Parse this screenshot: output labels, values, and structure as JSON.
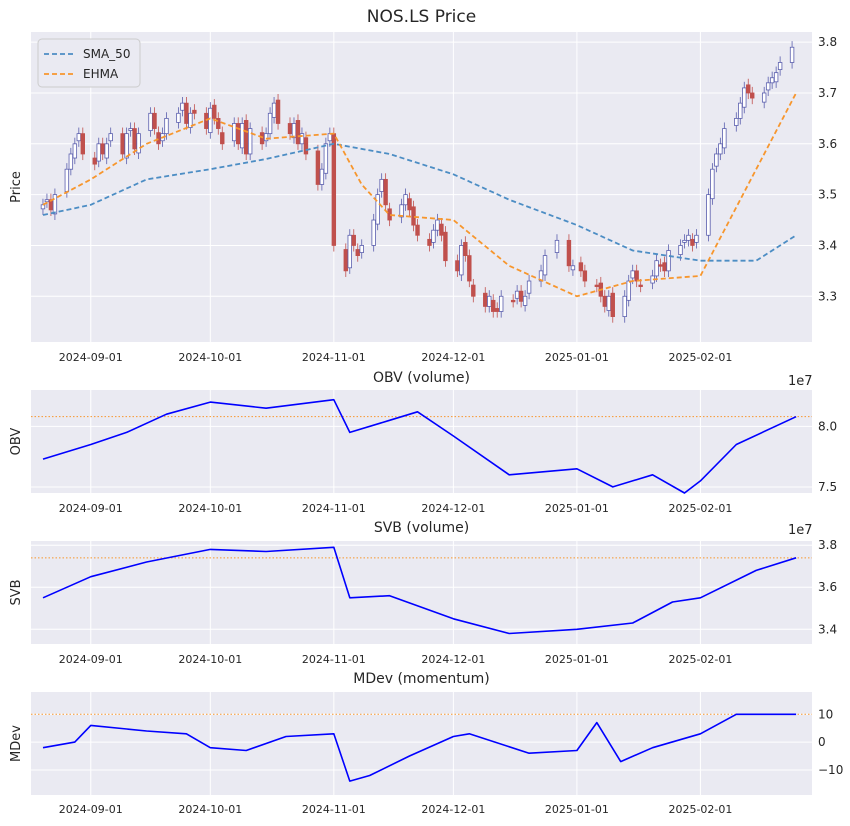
{
  "figure": {
    "background": "#ffffff",
    "panel_color": "#eaeaf2",
    "grid_color": "#ffffff"
  },
  "chart_data": [
    {
      "type": "candlestick",
      "title": "NOS.LS Price",
      "ylabel": "Price",
      "ylim": [
        3.21,
        3.82
      ],
      "yticks": [
        "3.3",
        "3.4",
        "3.5",
        "3.6",
        "3.7",
        "3.8"
      ],
      "x_ticks": [
        "2024-09-01",
        "2024-10-01",
        "2024-11-01",
        "2024-12-01",
        "2025-01-01",
        "2025-02-01"
      ],
      "x_range": [
        "2024-08-17",
        "2025-03-01"
      ],
      "up_color": "#5b5fae",
      "down_color": "#c0504d",
      "candle_dates": [
        "2024-08-20",
        "2024-08-21",
        "2024-08-22",
        "2024-08-23",
        "2024-08-26",
        "2024-08-27",
        "2024-08-28",
        "2024-08-29",
        "2024-08-30",
        "2024-09-02",
        "2024-09-03",
        "2024-09-04",
        "2024-09-05",
        "2024-09-06",
        "2024-09-09",
        "2024-09-10",
        "2024-09-11",
        "2024-09-12",
        "2024-09-13",
        "2024-09-16",
        "2024-09-17",
        "2024-09-18",
        "2024-09-19",
        "2024-09-20",
        "2024-09-23",
        "2024-09-24",
        "2024-09-25",
        "2024-09-26",
        "2024-09-27",
        "2024-09-30",
        "2024-10-01",
        "2024-10-02",
        "2024-10-03",
        "2024-10-04",
        "2024-10-07",
        "2024-10-08",
        "2024-10-09",
        "2024-10-10",
        "2024-10-11",
        "2024-10-14",
        "2024-10-15",
        "2024-10-16",
        "2024-10-17",
        "2024-10-18",
        "2024-10-21",
        "2024-10-22",
        "2024-10-23",
        "2024-10-24",
        "2024-10-25",
        "2024-10-28",
        "2024-10-29",
        "2024-10-30",
        "2024-10-31",
        "2024-11-01",
        "2024-11-04",
        "2024-11-05",
        "2024-11-06",
        "2024-11-07",
        "2024-11-08",
        "2024-11-11",
        "2024-11-12",
        "2024-11-13",
        "2024-11-14",
        "2024-11-15",
        "2024-11-18",
        "2024-11-19",
        "2024-11-20",
        "2024-11-21",
        "2024-11-22",
        "2024-11-25",
        "2024-11-26",
        "2024-11-27",
        "2024-11-28",
        "2024-11-29",
        "2024-12-02",
        "2024-12-03",
        "2024-12-04",
        "2024-12-05",
        "2024-12-06",
        "2024-12-09",
        "2024-12-10",
        "2024-12-11",
        "2024-12-12",
        "2024-12-13",
        "2024-12-16",
        "2024-12-17",
        "2024-12-18",
        "2024-12-19",
        "2024-12-20",
        "2024-12-23",
        "2024-12-24",
        "2024-12-27",
        "2024-12-30",
        "2024-12-31",
        "2025-01-02",
        "2025-01-03",
        "2025-01-06",
        "2025-01-07",
        "2025-01-08",
        "2025-01-09",
        "2025-01-10",
        "2025-01-13",
        "2025-01-14",
        "2025-01-15",
        "2025-01-16",
        "2025-01-17",
        "2025-01-20",
        "2025-01-21",
        "2025-01-22",
        "2025-01-23",
        "2025-01-24",
        "2025-01-27",
        "2025-01-28",
        "2025-01-29",
        "2025-01-30",
        "2025-01-31",
        "2025-02-03",
        "2025-02-04",
        "2025-02-05",
        "2025-02-06",
        "2025-02-07",
        "2025-02-10",
        "2025-02-11",
        "2025-02-12",
        "2025-02-13",
        "2025-02-14",
        "2025-02-17",
        "2025-02-18",
        "2025-02-19",
        "2025-02-20",
        "2025-02-21",
        "2025-02-24",
        "2025-02-25"
      ],
      "candle_close": [
        3.48,
        3.49,
        3.47,
        3.5,
        3.55,
        3.58,
        3.6,
        3.62,
        3.58,
        3.56,
        3.6,
        3.58,
        3.6,
        3.62,
        3.58,
        3.62,
        3.63,
        3.59,
        3.62,
        3.66,
        3.63,
        3.6,
        3.62,
        3.65,
        3.66,
        3.68,
        3.64,
        3.66,
        3.66,
        3.63,
        3.67,
        3.65,
        3.63,
        3.6,
        3.64,
        3.6,
        3.64,
        3.58,
        3.63,
        3.6,
        3.62,
        3.66,
        3.68,
        3.64,
        3.62,
        3.64,
        3.6,
        3.62,
        3.58,
        3.52,
        3.55,
        3.6,
        3.62,
        3.4,
        3.35,
        3.42,
        3.4,
        3.38,
        3.4,
        3.45,
        3.5,
        3.53,
        3.48,
        3.45,
        3.48,
        3.5,
        3.47,
        3.44,
        3.42,
        3.4,
        3.43,
        3.45,
        3.42,
        3.37,
        3.35,
        3.4,
        3.38,
        3.33,
        3.3,
        3.28,
        3.3,
        3.27,
        3.27,
        3.3,
        3.29,
        3.31,
        3.29,
        3.3,
        3.33,
        3.35,
        3.38,
        3.41,
        3.36,
        3.36,
        3.35,
        3.33,
        3.32,
        3.3,
        3.28,
        3.3,
        3.26,
        3.3,
        3.33,
        3.35,
        3.33,
        3.32,
        3.34,
        3.37,
        3.36,
        3.35,
        3.39,
        3.4,
        3.41,
        3.42,
        3.4,
        3.42,
        3.5,
        3.55,
        3.58,
        3.6,
        3.63,
        3.65,
        3.68,
        3.71,
        3.7,
        3.69,
        3.7,
        3.72,
        3.73,
        3.74,
        3.76,
        3.79
      ],
      "series": [
        {
          "name": "SMA_50",
          "color": "#4c8dc4",
          "dash": true,
          "x": [
            "2024-08-20",
            "2024-09-01",
            "2024-09-15",
            "2024-10-01",
            "2024-10-15",
            "2024-11-01",
            "2024-11-15",
            "2024-12-01",
            "2024-12-15",
            "2025-01-01",
            "2025-01-15",
            "2025-02-01",
            "2025-02-15",
            "2025-02-25"
          ],
          "y": [
            3.46,
            3.48,
            3.53,
            3.55,
            3.57,
            3.6,
            3.58,
            3.54,
            3.49,
            3.44,
            3.39,
            3.37,
            3.37,
            3.42
          ]
        },
        {
          "name": "EHMA",
          "color": "#f7962d",
          "dash": true,
          "x": [
            "2024-08-20",
            "2024-09-01",
            "2024-09-15",
            "2024-10-01",
            "2024-10-15",
            "2024-11-01",
            "2024-11-08",
            "2024-11-15",
            "2024-12-01",
            "2024-12-15",
            "2025-01-01",
            "2025-01-15",
            "2025-02-01",
            "2025-02-15",
            "2025-02-25"
          ],
          "y": [
            3.48,
            3.53,
            3.6,
            3.65,
            3.61,
            3.62,
            3.52,
            3.46,
            3.45,
            3.36,
            3.3,
            3.33,
            3.34,
            3.55,
            3.7
          ]
        }
      ],
      "legend": {
        "placement": "upper-left",
        "entries": [
          "SMA_50",
          "EHMA"
        ]
      }
    },
    {
      "type": "line",
      "title": "OBV (volume)",
      "ylabel": "OBV",
      "offset_text": "1e7",
      "ylim": [
        7.45,
        8.3
      ],
      "yticks": [
        "7.5",
        "8.0"
      ],
      "x_ticks": [
        "2024-09-01",
        "2024-10-01",
        "2024-11-01",
        "2024-12-01",
        "2025-01-01",
        "2025-02-01"
      ],
      "reference_line": 8.08,
      "series": [
        {
          "name": "",
          "color": "#0000ff",
          "x": [
            "2024-08-20",
            "2024-09-01",
            "2024-09-10",
            "2024-09-20",
            "2024-10-01",
            "2024-10-15",
            "2024-11-01",
            "2024-11-05",
            "2024-11-15",
            "2024-11-22",
            "2024-12-01",
            "2024-12-15",
            "2025-01-01",
            "2025-01-10",
            "2025-01-20",
            "2025-01-28",
            "2025-02-01",
            "2025-02-10",
            "2025-02-25"
          ],
          "y": [
            7.73,
            7.85,
            7.95,
            8.1,
            8.2,
            8.15,
            8.22,
            7.95,
            8.05,
            8.12,
            7.92,
            7.6,
            7.65,
            7.5,
            7.6,
            7.45,
            7.55,
            7.85,
            8.08
          ]
        }
      ]
    },
    {
      "type": "line",
      "title": "SVB (volume)",
      "ylabel": "SVB",
      "offset_text": "1e7",
      "ylim": [
        3.33,
        3.82
      ],
      "yticks": [
        "3.4",
        "3.6",
        "3.8"
      ],
      "x_ticks": [
        "2024-09-01",
        "2024-10-01",
        "2024-11-01",
        "2024-12-01",
        "2025-01-01",
        "2025-02-01"
      ],
      "reference_line": 3.74,
      "series": [
        {
          "name": "",
          "color": "#0000ff",
          "x": [
            "2024-08-20",
            "2024-09-01",
            "2024-09-15",
            "2024-10-01",
            "2024-10-15",
            "2024-11-01",
            "2024-11-05",
            "2024-11-15",
            "2024-12-01",
            "2024-12-15",
            "2025-01-01",
            "2025-01-15",
            "2025-01-25",
            "2025-02-01",
            "2025-02-15",
            "2025-02-25"
          ],
          "y": [
            3.55,
            3.65,
            3.72,
            3.78,
            3.77,
            3.79,
            3.55,
            3.56,
            3.45,
            3.38,
            3.4,
            3.43,
            3.53,
            3.55,
            3.68,
            3.74
          ]
        }
      ]
    },
    {
      "type": "line",
      "title": "MDev (momentum)",
      "ylabel": "MDev",
      "ylim": [
        -19,
        18
      ],
      "yticks": [
        "−10",
        "0",
        "10"
      ],
      "x_ticks": [
        "2024-09-01",
        "2024-10-01",
        "2024-11-01",
        "2024-12-01",
        "2025-01-01",
        "2025-02-01"
      ],
      "reference_line": 10,
      "series": [
        {
          "name": "",
          "color": "#0000ff",
          "x": [
            "2024-08-20",
            "2024-08-28",
            "2024-09-01",
            "2024-09-15",
            "2024-09-25",
            "2024-10-01",
            "2024-10-10",
            "2024-10-20",
            "2024-11-01",
            "2024-11-05",
            "2024-11-10",
            "2024-11-20",
            "2024-12-01",
            "2024-12-05",
            "2024-12-20",
            "2025-01-01",
            "2025-01-06",
            "2025-01-12",
            "2025-01-20",
            "2025-02-01",
            "2025-02-10",
            "2025-02-25"
          ],
          "y": [
            -2,
            0,
            6,
            4,
            3,
            -2,
            -3,
            2,
            3,
            -14,
            -12,
            -5,
            2,
            3,
            -4,
            -3,
            7,
            -7,
            -2,
            3,
            10,
            10
          ]
        }
      ]
    }
  ]
}
